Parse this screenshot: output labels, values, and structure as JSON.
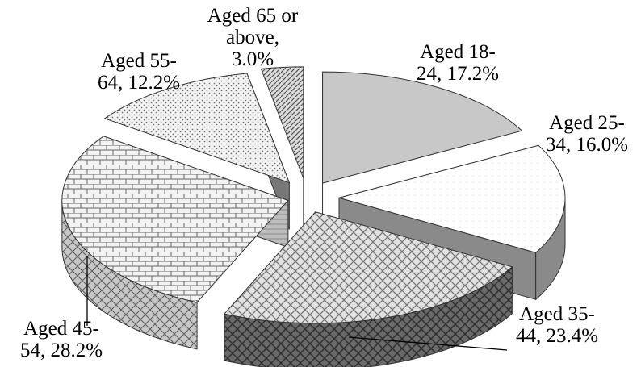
{
  "chart_data": {
    "type": "pie",
    "style": "3d-exploded",
    "slices": [
      {
        "label_lines": [
          "Aged 18-",
          "24, 17.2%"
        ],
        "value": 17.2
      },
      {
        "label_lines": [
          "Aged 25-",
          "34, 16.0%"
        ],
        "value": 16.0
      },
      {
        "label_lines": [
          "Aged 35-",
          "44, 23.4%"
        ],
        "value": 23.4
      },
      {
        "label_lines": [
          "Aged 45-",
          "54, 28.2%"
        ],
        "value": 28.2
      },
      {
        "label_lines": [
          "Aged 55-",
          "64, 12.2%"
        ],
        "value": 12.2
      },
      {
        "label_lines": [
          "Aged 65 or",
          "above,",
          "3.0%"
        ],
        "value": 3.0
      }
    ],
    "legend": "none"
  }
}
